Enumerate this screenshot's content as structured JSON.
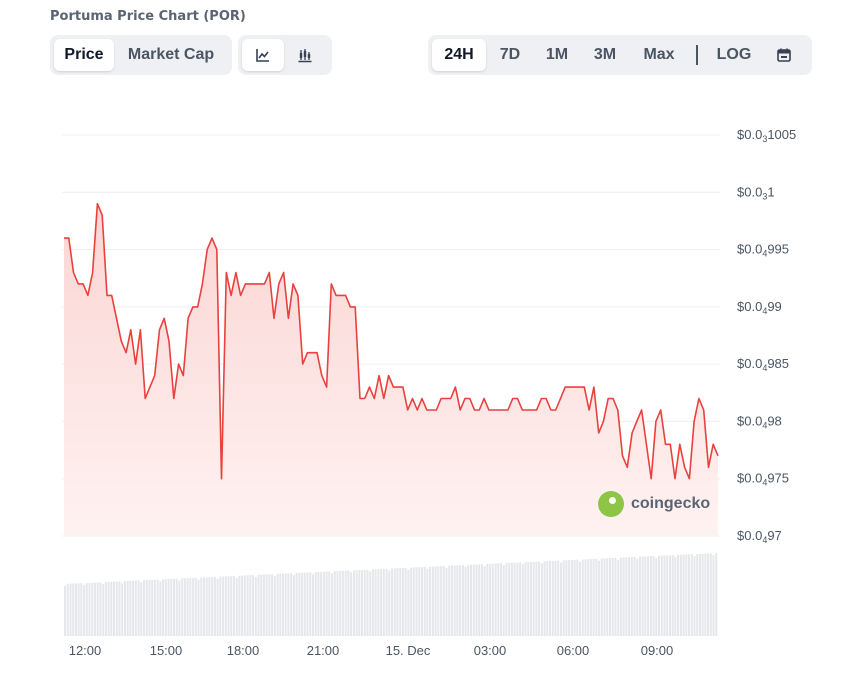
{
  "header": {
    "title": "Portuma Price Chart (POR)",
    "metric_tabs": [
      {
        "label": "Price",
        "active": true
      },
      {
        "label": "Market Cap",
        "active": false
      }
    ],
    "chart_type_icons": [
      "line-chart-icon",
      "candlestick-chart-icon"
    ],
    "range_tabs": [
      {
        "label": "24H",
        "active": true
      },
      {
        "label": "7D",
        "active": false
      },
      {
        "label": "1M",
        "active": false
      },
      {
        "label": "3M",
        "active": false
      },
      {
        "label": "Max",
        "active": false
      }
    ],
    "log_label": "LOG",
    "calendar_icon": "calendar-icon"
  },
  "watermark": {
    "text": "coingecko"
  },
  "colors": {
    "line": "#e8413e",
    "fill": "#fde3e1",
    "volume": "#e5e7eb",
    "grid": "#eceff2",
    "text": "#4b5563"
  },
  "chart_data": {
    "type": "line",
    "title": "Portuma Price Chart (POR)",
    "series": [
      {
        "values": [
          9.96e-05,
          9.96e-05,
          9.93e-05,
          9.92e-05,
          9.92e-05,
          9.91e-05,
          9.93e-05,
          9.99e-05,
          9.98e-05,
          9.91e-05,
          9.91e-05,
          9.89e-05,
          9.87e-05,
          9.86e-05,
          9.88e-05,
          9.85e-05,
          9.88e-05,
          9.82e-05,
          9.83e-05,
          9.84e-05,
          9.88e-05,
          9.89e-05,
          9.87e-05,
          9.82e-05,
          9.85e-05,
          9.84e-05,
          9.89e-05,
          9.9e-05,
          9.9e-05,
          9.92e-05,
          9.95e-05,
          9.96e-05,
          9.95e-05,
          9.75e-05,
          9.93e-05,
          9.91e-05,
          9.93e-05,
          9.91e-05,
          9.92e-05,
          9.92e-05,
          9.92e-05,
          9.92e-05,
          9.92e-05,
          9.93e-05,
          9.89e-05,
          9.92e-05,
          9.93e-05,
          9.89e-05,
          9.92e-05,
          9.91e-05,
          9.85e-05,
          9.86e-05,
          9.86e-05,
          9.86e-05,
          9.84e-05,
          9.83e-05,
          9.92e-05,
          9.91e-05,
          9.91e-05,
          9.91e-05,
          9.9e-05,
          9.9e-05,
          9.82e-05,
          9.82e-05,
          9.83e-05,
          9.82e-05,
          9.84e-05,
          9.82e-05,
          9.84e-05,
          9.83e-05,
          9.83e-05,
          9.83e-05,
          9.81e-05,
          9.82e-05,
          9.81e-05,
          9.82e-05,
          9.81e-05,
          9.81e-05,
          9.81e-05,
          9.82e-05,
          9.82e-05,
          9.82e-05,
          9.83e-05,
          9.81e-05,
          9.82e-05,
          9.82e-05,
          9.81e-05,
          9.81e-05,
          9.82e-05,
          9.81e-05,
          9.81e-05,
          9.81e-05,
          9.81e-05,
          9.81e-05,
          9.82e-05,
          9.82e-05,
          9.81e-05,
          9.81e-05,
          9.81e-05,
          9.81e-05,
          9.82e-05,
          9.82e-05,
          9.81e-05,
          9.81e-05,
          9.82e-05,
          9.83e-05,
          9.83e-05,
          9.83e-05,
          9.83e-05,
          9.83e-05,
          9.81e-05,
          9.83e-05,
          9.79e-05,
          9.8e-05,
          9.82e-05,
          9.82e-05,
          9.81e-05,
          9.77e-05,
          9.76e-05,
          9.79e-05,
          9.8e-05,
          9.81e-05,
          9.78e-05,
          9.75e-05,
          9.8e-05,
          9.81e-05,
          9.78e-05,
          9.78e-05,
          9.75e-05,
          9.78e-05,
          9.76e-05,
          9.75e-05,
          9.8e-05,
          9.82e-05,
          9.81e-05,
          9.76e-05,
          9.78e-05,
          9.77e-05
        ]
      }
    ],
    "x_ticks": [
      "12:00",
      "15:00",
      "18:00",
      "21:00",
      "15. Dec",
      "03:00",
      "06:00",
      "09:00"
    ],
    "y_ticks": [
      {
        "value": 9.7e-05,
        "prefix": "$0.0",
        "sub": "4",
        "suffix": "97"
      },
      {
        "value": 9.75e-05,
        "prefix": "$0.0",
        "sub": "4",
        "suffix": "975"
      },
      {
        "value": 9.8e-05,
        "prefix": "$0.0",
        "sub": "4",
        "suffix": "98"
      },
      {
        "value": 9.85e-05,
        "prefix": "$0.0",
        "sub": "4",
        "suffix": "985"
      },
      {
        "value": 9.9e-05,
        "prefix": "$0.0",
        "sub": "4",
        "suffix": "99"
      },
      {
        "value": 9.95e-05,
        "prefix": "$0.0",
        "sub": "4",
        "suffix": "995"
      },
      {
        "value": 0.0001,
        "prefix": "$0.0",
        "sub": "3",
        "suffix": "1"
      },
      {
        "value": 0.0001005,
        "prefix": "$0.0",
        "sub": "3",
        "suffix": "1005"
      }
    ],
    "ylim": [
      9.7e-05,
      0.0001005
    ],
    "grid": true,
    "volume_bars": true
  }
}
